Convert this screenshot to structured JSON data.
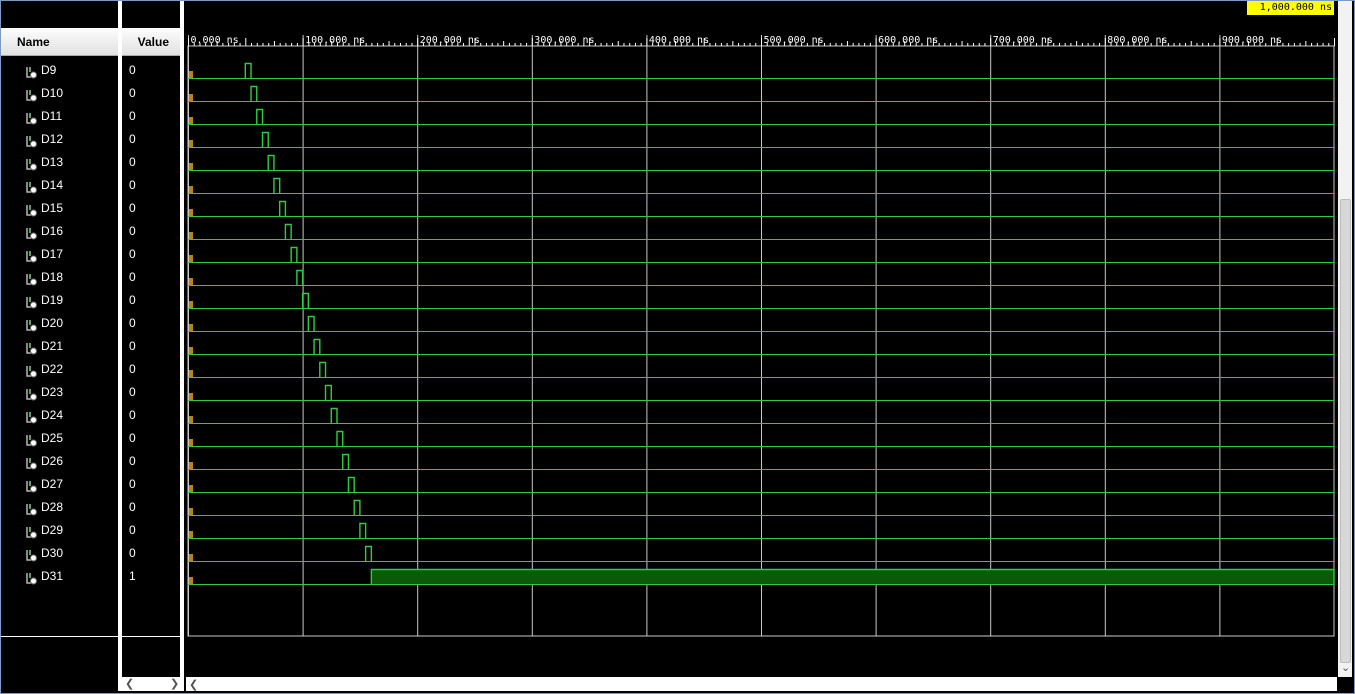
{
  "window": {
    "background": "#000000",
    "grid_color": "#c8c8c8",
    "wave_color": "#2ecc40",
    "fill_color": "#0a5a0a",
    "tick_color": "#ffffff"
  },
  "columns": {
    "name_header": "Name",
    "value_header": "Value"
  },
  "cursor": {
    "label": "1,000.000 ns",
    "color": "#ffff00"
  },
  "timeline": {
    "start_ns": 0,
    "end_ns": 1000,
    "tick_labels": [
      "0.000 ns",
      "100.000 ns",
      "200.000 ns",
      "300.000 ns",
      "400.000 ns",
      "500.000 ns",
      "600.000 ns",
      "700.000 ns",
      "800.000 ns",
      "900.000 ns"
    ]
  },
  "signals": [
    {
      "name": "D9",
      "value": "0",
      "pulse_start_ns": 50,
      "pulse_end_ns": 55
    },
    {
      "name": "D10",
      "value": "0",
      "pulse_start_ns": 55,
      "pulse_end_ns": 60
    },
    {
      "name": "D11",
      "value": "0",
      "pulse_start_ns": 60,
      "pulse_end_ns": 65
    },
    {
      "name": "D12",
      "value": "0",
      "pulse_start_ns": 65,
      "pulse_end_ns": 70
    },
    {
      "name": "D13",
      "value": "0",
      "pulse_start_ns": 70,
      "pulse_end_ns": 75
    },
    {
      "name": "D14",
      "value": "0",
      "pulse_start_ns": 75,
      "pulse_end_ns": 80
    },
    {
      "name": "D15",
      "value": "0",
      "pulse_start_ns": 80,
      "pulse_end_ns": 85
    },
    {
      "name": "D16",
      "value": "0",
      "pulse_start_ns": 85,
      "pulse_end_ns": 90
    },
    {
      "name": "D17",
      "value": "0",
      "pulse_start_ns": 90,
      "pulse_end_ns": 95
    },
    {
      "name": "D18",
      "value": "0",
      "pulse_start_ns": 95,
      "pulse_end_ns": 100
    },
    {
      "name": "D19",
      "value": "0",
      "pulse_start_ns": 100,
      "pulse_end_ns": 105
    },
    {
      "name": "D20",
      "value": "0",
      "pulse_start_ns": 105,
      "pulse_end_ns": 110
    },
    {
      "name": "D21",
      "value": "0",
      "pulse_start_ns": 110,
      "pulse_end_ns": 115
    },
    {
      "name": "D22",
      "value": "0",
      "pulse_start_ns": 115,
      "pulse_end_ns": 120
    },
    {
      "name": "D23",
      "value": "0",
      "pulse_start_ns": 120,
      "pulse_end_ns": 125
    },
    {
      "name": "D24",
      "value": "0",
      "pulse_start_ns": 125,
      "pulse_end_ns": 130
    },
    {
      "name": "D25",
      "value": "0",
      "pulse_start_ns": 130,
      "pulse_end_ns": 135
    },
    {
      "name": "D26",
      "value": "0",
      "pulse_start_ns": 135,
      "pulse_end_ns": 140
    },
    {
      "name": "D27",
      "value": "0",
      "pulse_start_ns": 140,
      "pulse_end_ns": 145
    },
    {
      "name": "D28",
      "value": "0",
      "pulse_start_ns": 145,
      "pulse_end_ns": 150
    },
    {
      "name": "D29",
      "value": "0",
      "pulse_start_ns": 150,
      "pulse_end_ns": 155
    },
    {
      "name": "D30",
      "value": "0",
      "pulse_start_ns": 155,
      "pulse_end_ns": 160
    },
    {
      "name": "D31",
      "value": "1",
      "pulse_start_ns": 160,
      "pulse_end_ns": 1000
    }
  ]
}
